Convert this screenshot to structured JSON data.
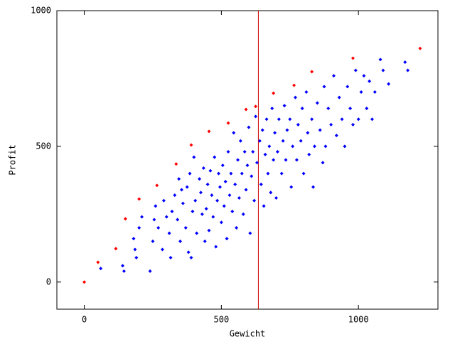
{
  "chart_data": {
    "type": "scatter",
    "xlabel": "Gewicht",
    "ylabel": "Profit",
    "xlim": [
      -100,
      1290
    ],
    "ylim": [
      -100,
      1000
    ],
    "xticks": [
      0,
      500,
      1000
    ],
    "yticks": [
      0,
      500,
      1000
    ],
    "vertical_line": {
      "x": 635,
      "color": "#cc0000"
    },
    "series": [
      {
        "color": "#0000ff",
        "x": [
          60,
          140,
          145,
          180,
          185,
          190,
          200,
          210,
          240,
          250,
          255,
          260,
          270,
          285,
          290,
          300,
          310,
          315,
          320,
          330,
          340,
          345,
          350,
          355,
          360,
          370,
          375,
          380,
          385,
          390,
          395,
          400,
          405,
          410,
          420,
          425,
          430,
          435,
          440,
          445,
          450,
          455,
          460,
          465,
          470,
          475,
          480,
          485,
          490,
          495,
          500,
          505,
          510,
          515,
          520,
          525,
          530,
          535,
          540,
          545,
          550,
          555,
          560,
          565,
          570,
          575,
          580,
          585,
          590,
          595,
          600,
          605,
          610,
          615,
          620,
          625,
          630,
          640,
          645,
          650,
          655,
          660,
          665,
          670,
          675,
          680,
          685,
          690,
          695,
          700,
          705,
          710,
          720,
          725,
          730,
          735,
          740,
          750,
          755,
          760,
          770,
          775,
          780,
          790,
          795,
          800,
          810,
          815,
          820,
          830,
          835,
          840,
          850,
          860,
          870,
          875,
          880,
          890,
          900,
          910,
          920,
          930,
          940,
          950,
          960,
          970,
          980,
          990,
          1000,
          1010,
          1020,
          1030,
          1040,
          1050,
          1060,
          1080,
          1090,
          1110,
          1170,
          1180
        ],
        "values": [
          50,
          60,
          40,
          160,
          120,
          90,
          200,
          240,
          40,
          150,
          230,
          280,
          200,
          120,
          300,
          240,
          180,
          90,
          260,
          320,
          230,
          380,
          150,
          340,
          290,
          200,
          350,
          110,
          400,
          90,
          260,
          460,
          300,
          180,
          380,
          330,
          250,
          420,
          150,
          270,
          360,
          190,
          410,
          320,
          240,
          460,
          130,
          300,
          400,
          350,
          220,
          430,
          280,
          370,
          160,
          480,
          320,
          400,
          260,
          550,
          360,
          200,
          450,
          310,
          520,
          400,
          250,
          480,
          340,
          430,
          570,
          180,
          390,
          480,
          300,
          610,
          440,
          520,
          360,
          560,
          280,
          470,
          600,
          400,
          500,
          330,
          640,
          450,
          550,
          310,
          480,
          600,
          400,
          520,
          650,
          450,
          560,
          600,
          350,
          500,
          680,
          450,
          580,
          520,
          640,
          400,
          700,
          550,
          470,
          600,
          350,
          500,
          660,
          560,
          440,
          720,
          500,
          640,
          580,
          760,
          540,
          680,
          600,
          500,
          720,
          640,
          580,
          780,
          600,
          700,
          760,
          640,
          740,
          600,
          700,
          820,
          780,
          730,
          810,
          780
        ]
      },
      {
        "color": "#ff0000",
        "x": [
          0,
          50,
          115,
          150,
          200,
          265,
          335,
          390,
          455,
          525,
          590,
          625,
          690,
          765,
          830,
          980,
          1225
        ],
        "values": [
          0,
          73,
          123,
          233,
          306,
          356,
          435,
          505,
          555,
          586,
          636,
          647,
          696,
          725,
          775,
          825,
          861
        ]
      }
    ]
  }
}
